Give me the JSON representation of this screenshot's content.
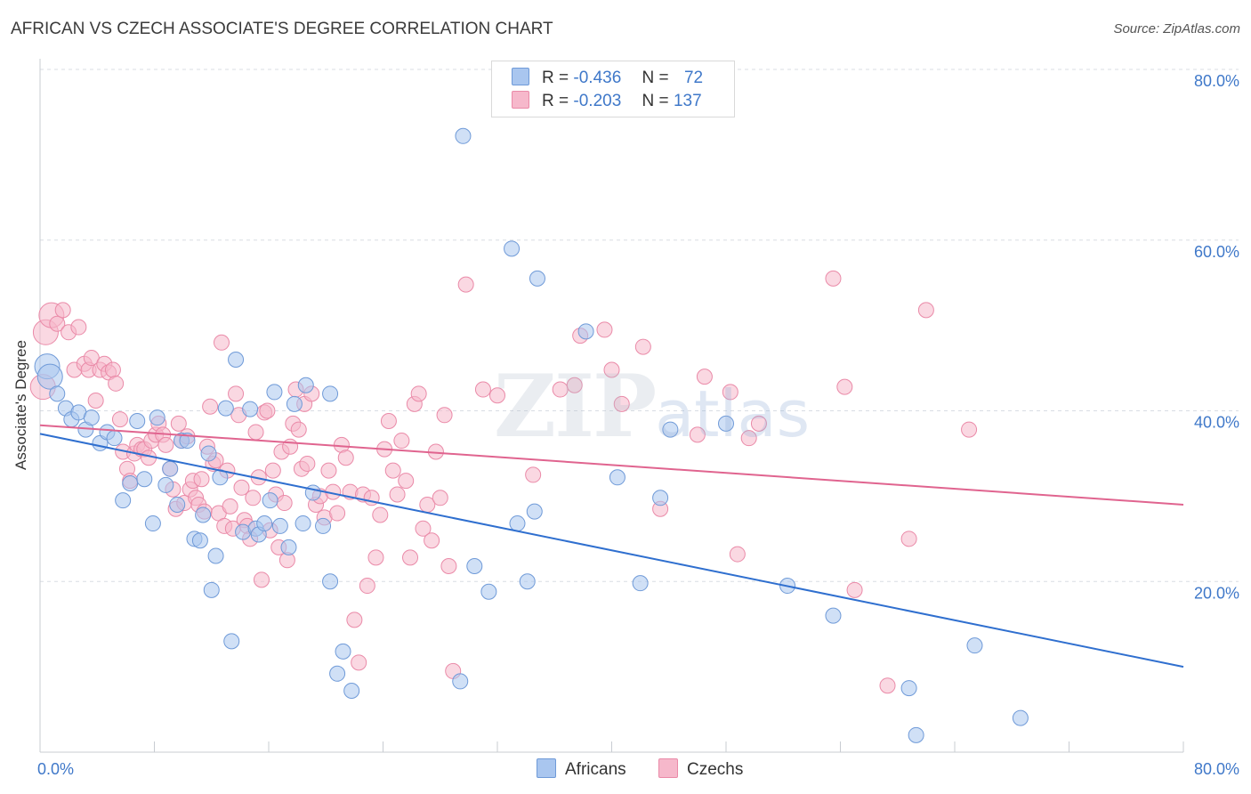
{
  "title": "AFRICAN VS CZECH ASSOCIATE'S DEGREE CORRELATION CHART",
  "source": "Source: ZipAtlas.com",
  "watermark": {
    "zip": "ZIP",
    "atlas": "atlas"
  },
  "legend": {
    "rows": [
      {
        "r_label": "R =",
        "r_value": "-0.436",
        "n_label": "N =",
        "n_value": "72"
      },
      {
        "r_label": "R =",
        "r_value": "-0.203",
        "n_label": "N =",
        "n_value": "137"
      }
    ],
    "bottom": [
      "Africans",
      "Czechs"
    ]
  },
  "colors": {
    "blue_fill": "#a9c6ef",
    "blue_stroke": "#6f9ad8",
    "blue_line": "#2f6fcf",
    "pink_fill": "#f6b8cb",
    "pink_stroke": "#ea8aa8",
    "pink_line": "#e0648f",
    "tick_label": "#3f78c9",
    "grid": "#d9dde3"
  },
  "chart_data": {
    "type": "scatter",
    "title": "AFRICAN VS CZECH ASSOCIATE'S DEGREE CORRELATION CHART",
    "xlabel": "",
    "ylabel": "Associate's Degree",
    "xlim": [
      0,
      0.8
    ],
    "ylim": [
      0,
      0.8
    ],
    "x_tick_labels": [
      "0.0%",
      "80.0%"
    ],
    "y_tick_values": [
      0.2,
      0.4,
      0.6,
      0.8
    ],
    "y_tick_labels": [
      "20.0%",
      "40.0%",
      "60.0%",
      "80.0%"
    ],
    "grid": true,
    "legend_placement": "top-center",
    "series": [
      {
        "name": "Africans",
        "r": -0.436,
        "n": 72,
        "trend": {
          "x": [
            0,
            0.8
          ],
          "y": [
            0.373,
            0.1
          ]
        },
        "points": [
          [
            0.005,
            0.452
          ],
          [
            0.007,
            0.44
          ],
          [
            0.012,
            0.42
          ],
          [
            0.018,
            0.403
          ],
          [
            0.022,
            0.39
          ],
          [
            0.027,
            0.398
          ],
          [
            0.032,
            0.378
          ],
          [
            0.036,
            0.392
          ],
          [
            0.042,
            0.362
          ],
          [
            0.047,
            0.375
          ],
          [
            0.052,
            0.368
          ],
          [
            0.058,
            0.295
          ],
          [
            0.063,
            0.315
          ],
          [
            0.068,
            0.388
          ],
          [
            0.073,
            0.32
          ],
          [
            0.079,
            0.268
          ],
          [
            0.082,
            0.392
          ],
          [
            0.088,
            0.313
          ],
          [
            0.091,
            0.332
          ],
          [
            0.096,
            0.29
          ],
          [
            0.099,
            0.365
          ],
          [
            0.103,
            0.365
          ],
          [
            0.108,
            0.25
          ],
          [
            0.112,
            0.248
          ],
          [
            0.114,
            0.278
          ],
          [
            0.118,
            0.35
          ],
          [
            0.12,
            0.19
          ],
          [
            0.123,
            0.23
          ],
          [
            0.126,
            0.322
          ],
          [
            0.13,
            0.403
          ],
          [
            0.134,
            0.13
          ],
          [
            0.137,
            0.46
          ],
          [
            0.142,
            0.258
          ],
          [
            0.147,
            0.402
          ],
          [
            0.151,
            0.262
          ],
          [
            0.153,
            0.255
          ],
          [
            0.157,
            0.268
          ],
          [
            0.161,
            0.295
          ],
          [
            0.164,
            0.422
          ],
          [
            0.168,
            0.265
          ],
          [
            0.174,
            0.24
          ],
          [
            0.178,
            0.408
          ],
          [
            0.184,
            0.268
          ],
          [
            0.186,
            0.43
          ],
          [
            0.191,
            0.304
          ],
          [
            0.198,
            0.265
          ],
          [
            0.203,
            0.2
          ],
          [
            0.208,
            0.092
          ],
          [
            0.212,
            0.118
          ],
          [
            0.218,
            0.072
          ],
          [
            0.203,
            0.42
          ],
          [
            0.296,
            0.722
          ],
          [
            0.294,
            0.083
          ],
          [
            0.304,
            0.218
          ],
          [
            0.314,
            0.188
          ],
          [
            0.33,
            0.59
          ],
          [
            0.334,
            0.268
          ],
          [
            0.341,
            0.2
          ],
          [
            0.346,
            0.282
          ],
          [
            0.348,
            0.555
          ],
          [
            0.382,
            0.493
          ],
          [
            0.404,
            0.322
          ],
          [
            0.42,
            0.198
          ],
          [
            0.434,
            0.298
          ],
          [
            0.441,
            0.378
          ],
          [
            0.48,
            0.385
          ],
          [
            0.523,
            0.195
          ],
          [
            0.555,
            0.16
          ],
          [
            0.608,
            0.075
          ],
          [
            0.613,
            0.02
          ],
          [
            0.654,
            0.125
          ],
          [
            0.686,
            0.04
          ]
        ]
      },
      {
        "name": "Czechs",
        "r": -0.203,
        "n": 137,
        "trend": {
          "x": [
            0,
            0.8
          ],
          "y": [
            0.383,
            0.29
          ]
        },
        "points": [
          [
            0.002,
            0.428
          ],
          [
            0.004,
            0.492
          ],
          [
            0.008,
            0.512
          ],
          [
            0.012,
            0.502
          ],
          [
            0.016,
            0.518
          ],
          [
            0.02,
            0.492
          ],
          [
            0.024,
            0.448
          ],
          [
            0.027,
            0.498
          ],
          [
            0.031,
            0.455
          ],
          [
            0.034,
            0.448
          ],
          [
            0.036,
            0.462
          ],
          [
            0.039,
            0.412
          ],
          [
            0.042,
            0.448
          ],
          [
            0.045,
            0.455
          ],
          [
            0.048,
            0.445
          ],
          [
            0.051,
            0.448
          ],
          [
            0.053,
            0.432
          ],
          [
            0.056,
            0.39
          ],
          [
            0.058,
            0.352
          ],
          [
            0.061,
            0.332
          ],
          [
            0.063,
            0.318
          ],
          [
            0.066,
            0.35
          ],
          [
            0.068,
            0.36
          ],
          [
            0.071,
            0.355
          ],
          [
            0.073,
            0.355
          ],
          [
            0.076,
            0.345
          ],
          [
            0.078,
            0.365
          ],
          [
            0.081,
            0.372
          ],
          [
            0.083,
            0.385
          ],
          [
            0.086,
            0.372
          ],
          [
            0.088,
            0.36
          ],
          [
            0.091,
            0.332
          ],
          [
            0.093,
            0.308
          ],
          [
            0.095,
            0.285
          ],
          [
            0.097,
            0.385
          ],
          [
            0.099,
            0.365
          ],
          [
            0.101,
            0.292
          ],
          [
            0.103,
            0.37
          ],
          [
            0.105,
            0.308
          ],
          [
            0.107,
            0.318
          ],
          [
            0.109,
            0.298
          ],
          [
            0.111,
            0.29
          ],
          [
            0.113,
            0.32
          ],
          [
            0.115,
            0.282
          ],
          [
            0.117,
            0.358
          ],
          [
            0.119,
            0.405
          ],
          [
            0.121,
            0.338
          ],
          [
            0.123,
            0.342
          ],
          [
            0.125,
            0.28
          ],
          [
            0.127,
            0.48
          ],
          [
            0.129,
            0.265
          ],
          [
            0.131,
            0.33
          ],
          [
            0.133,
            0.288
          ],
          [
            0.135,
            0.262
          ],
          [
            0.137,
            0.42
          ],
          [
            0.139,
            0.395
          ],
          [
            0.141,
            0.31
          ],
          [
            0.143,
            0.272
          ],
          [
            0.145,
            0.265
          ],
          [
            0.147,
            0.25
          ],
          [
            0.149,
            0.298
          ],
          [
            0.151,
            0.375
          ],
          [
            0.153,
            0.322
          ],
          [
            0.155,
            0.202
          ],
          [
            0.157,
            0.398
          ],
          [
            0.159,
            0.4
          ],
          [
            0.161,
            0.26
          ],
          [
            0.163,
            0.33
          ],
          [
            0.165,
            0.302
          ],
          [
            0.167,
            0.24
          ],
          [
            0.169,
            0.352
          ],
          [
            0.171,
            0.292
          ],
          [
            0.173,
            0.225
          ],
          [
            0.175,
            0.358
          ],
          [
            0.177,
            0.385
          ],
          [
            0.179,
            0.425
          ],
          [
            0.181,
            0.378
          ],
          [
            0.183,
            0.332
          ],
          [
            0.185,
            0.408
          ],
          [
            0.187,
            0.338
          ],
          [
            0.19,
            0.42
          ],
          [
            0.193,
            0.29
          ],
          [
            0.196,
            0.3
          ],
          [
            0.199,
            0.275
          ],
          [
            0.202,
            0.33
          ],
          [
            0.205,
            0.305
          ],
          [
            0.208,
            0.28
          ],
          [
            0.211,
            0.36
          ],
          [
            0.214,
            0.345
          ],
          [
            0.217,
            0.305
          ],
          [
            0.22,
            0.155
          ],
          [
            0.223,
            0.105
          ],
          [
            0.226,
            0.302
          ],
          [
            0.229,
            0.195
          ],
          [
            0.232,
            0.298
          ],
          [
            0.235,
            0.228
          ],
          [
            0.238,
            0.278
          ],
          [
            0.241,
            0.355
          ],
          [
            0.244,
            0.388
          ],
          [
            0.247,
            0.33
          ],
          [
            0.25,
            0.302
          ],
          [
            0.253,
            0.365
          ],
          [
            0.256,
            0.318
          ],
          [
            0.259,
            0.228
          ],
          [
            0.262,
            0.408
          ],
          [
            0.265,
            0.42
          ],
          [
            0.268,
            0.262
          ],
          [
            0.271,
            0.29
          ],
          [
            0.274,
            0.248
          ],
          [
            0.277,
            0.352
          ],
          [
            0.28,
            0.298
          ],
          [
            0.283,
            0.395
          ],
          [
            0.286,
            0.218
          ],
          [
            0.289,
            0.095
          ],
          [
            0.298,
            0.548
          ],
          [
            0.31,
            0.425
          ],
          [
            0.32,
            0.418
          ],
          [
            0.345,
            0.325
          ],
          [
            0.364,
            0.425
          ],
          [
            0.374,
            0.43
          ],
          [
            0.378,
            0.488
          ],
          [
            0.395,
            0.495
          ],
          [
            0.4,
            0.448
          ],
          [
            0.407,
            0.408
          ],
          [
            0.422,
            0.475
          ],
          [
            0.434,
            0.285
          ],
          [
            0.46,
            0.372
          ],
          [
            0.465,
            0.44
          ],
          [
            0.483,
            0.422
          ],
          [
            0.488,
            0.232
          ],
          [
            0.496,
            0.368
          ],
          [
            0.503,
            0.385
          ],
          [
            0.555,
            0.555
          ],
          [
            0.563,
            0.428
          ],
          [
            0.57,
            0.19
          ],
          [
            0.593,
            0.078
          ],
          [
            0.608,
            0.25
          ],
          [
            0.62,
            0.518
          ],
          [
            0.65,
            0.378
          ]
        ]
      }
    ]
  }
}
